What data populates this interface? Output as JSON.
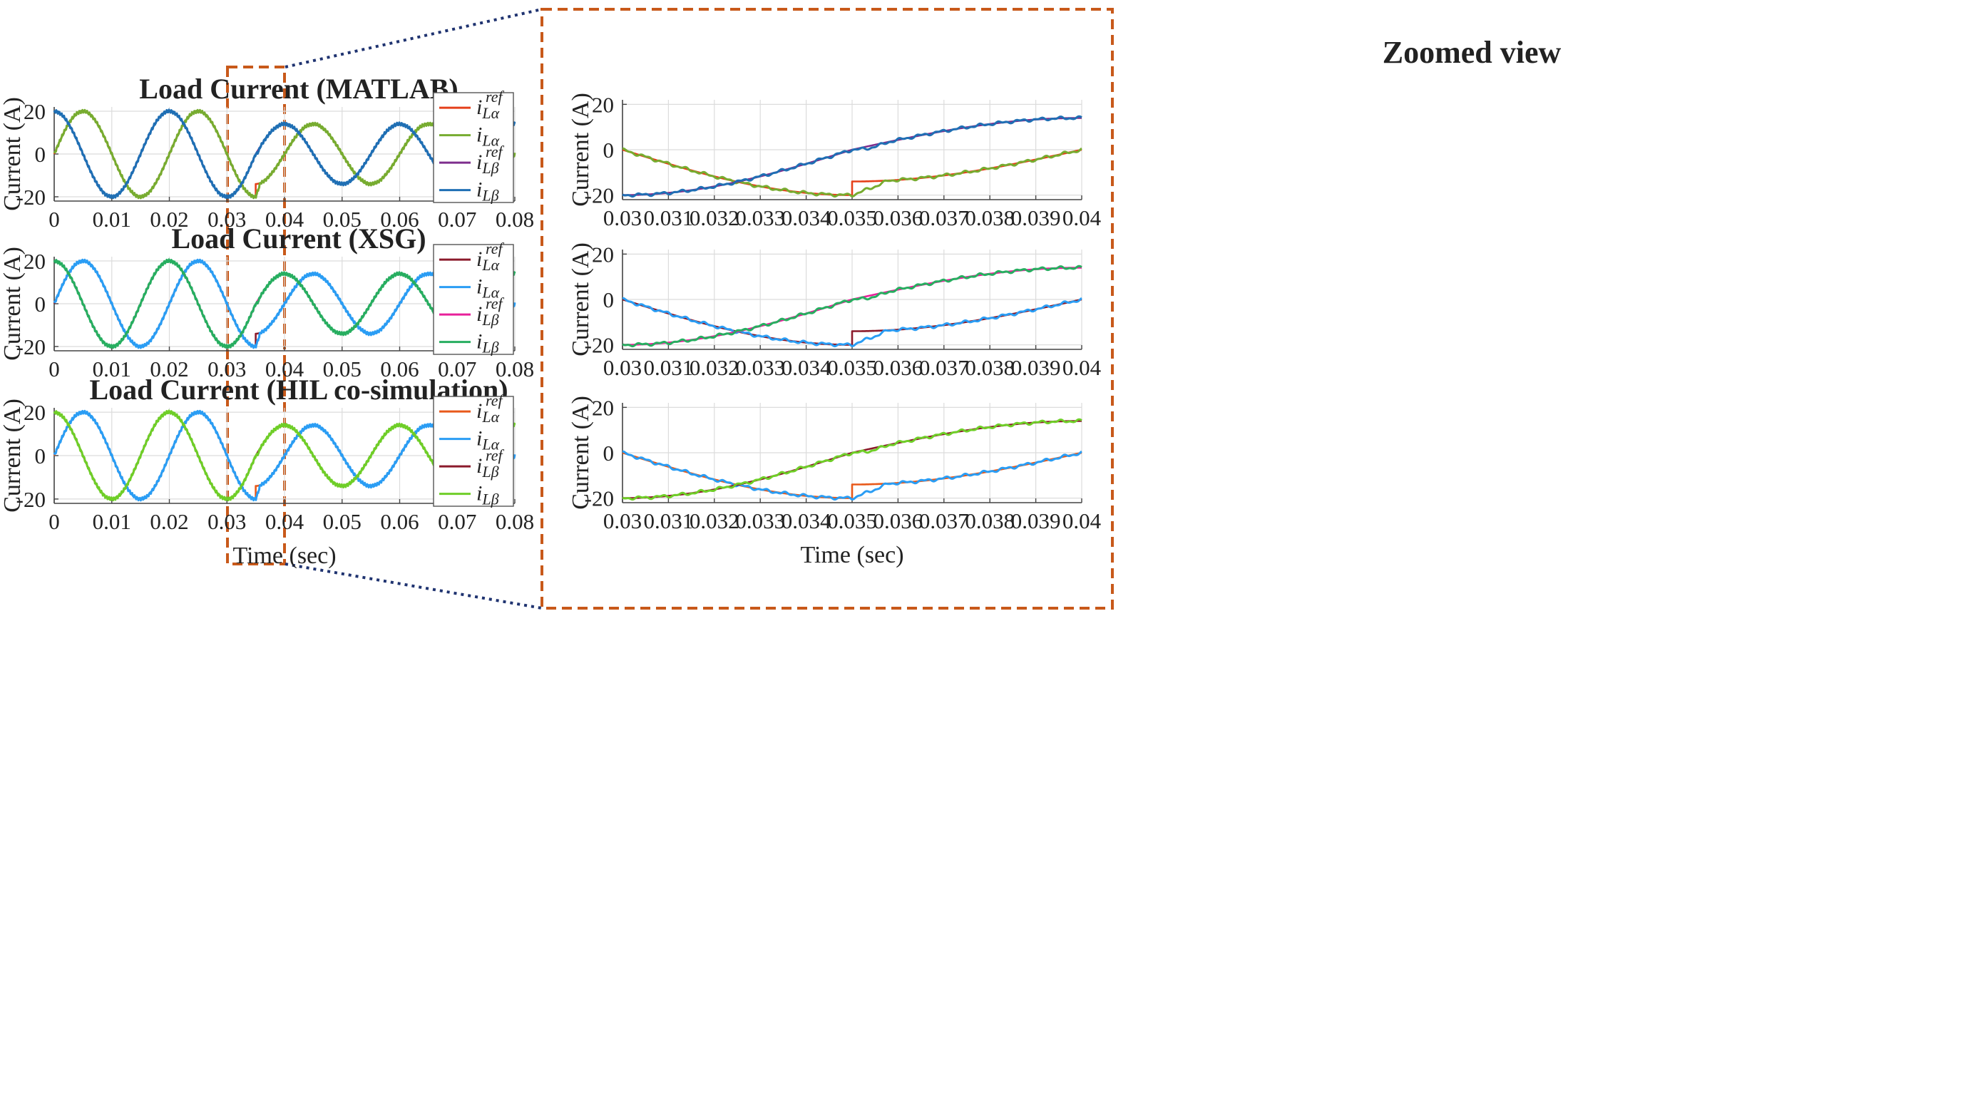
{
  "figure": {
    "zoom_title": "Zoomed view",
    "colors": {
      "box": "#c8591a",
      "connector": "#1f3370",
      "grid": "#dcdcdc",
      "axis": "#444444"
    }
  },
  "chart_data": [
    {
      "id": "left1",
      "type": "line",
      "title": "Load Current (MATLAB)",
      "xlabel": "",
      "ylabel": "Current (A)",
      "xlim": [
        0,
        0.08
      ],
      "ylim": [
        -22,
        22
      ],
      "xticks": [
        0,
        0.01,
        0.02,
        0.03,
        0.04,
        0.05,
        0.06,
        0.07,
        0.08
      ],
      "xtick_labels": [
        "0",
        "0.01",
        "0.02",
        "0.03",
        "0.04",
        "0.05",
        "0.06",
        "0.07",
        "0.08"
      ],
      "yticks": [
        20,
        0,
        -20
      ],
      "ytick_labels": [
        "20",
        "0",
        "-20"
      ],
      "legend_position": "top-right",
      "series": [
        {
          "name": "i_Lα^ref",
          "base": "i",
          "sub": "Lα",
          "sup": "ref",
          "signal": "alpha",
          "ref": true,
          "color": "#e5401b"
        },
        {
          "name": "i_Lα",
          "base": "i",
          "sub": "Lα",
          "sup": "",
          "signal": "alpha",
          "ref": false,
          "color": "#77ac30"
        },
        {
          "name": "i_Lβ^ref",
          "base": "i",
          "sub": "Lβ",
          "sup": "ref",
          "signal": "beta",
          "ref": true,
          "color": "#7e2f8e"
        },
        {
          "name": "i_Lβ",
          "base": "i",
          "sub": "Lβ",
          "sup": "",
          "signal": "beta",
          "ref": false,
          "color": "#1f6fb4"
        }
      ]
    },
    {
      "id": "left2",
      "type": "line",
      "title": "Load Current (XSG)",
      "xlabel": "",
      "ylabel": "Current (A)",
      "xlim": [
        0,
        0.08
      ],
      "ylim": [
        -22,
        22
      ],
      "xticks": [
        0,
        0.01,
        0.02,
        0.03,
        0.04,
        0.05,
        0.06,
        0.07,
        0.08
      ],
      "xtick_labels": [
        "0",
        "0.01",
        "0.02",
        "0.03",
        "0.04",
        "0.05",
        "0.06",
        "0.07",
        "0.08"
      ],
      "yticks": [
        20,
        0,
        -20
      ],
      "ytick_labels": [
        "20",
        "0",
        "-20"
      ],
      "legend_position": "top-right",
      "series": [
        {
          "name": "i_Lα^ref",
          "base": "i",
          "sub": "Lα",
          "sup": "ref",
          "signal": "alpha",
          "ref": true,
          "color": "#8b1a2b"
        },
        {
          "name": "i_Lα",
          "base": "i",
          "sub": "Lα",
          "sup": "",
          "signal": "alpha",
          "ref": false,
          "color": "#2a9df4"
        },
        {
          "name": "i_Lβ^ref",
          "base": "i",
          "sub": "Lβ",
          "sup": "ref",
          "signal": "beta",
          "ref": true,
          "color": "#e8209a"
        },
        {
          "name": "i_Lβ",
          "base": "i",
          "sub": "Lβ",
          "sup": "",
          "signal": "beta",
          "ref": false,
          "color": "#27ae60"
        }
      ]
    },
    {
      "id": "left3",
      "type": "line",
      "title": "Load Current (HIL co-simulation)",
      "xlabel": "Time (sec)",
      "ylabel": "Current (A)",
      "xlim": [
        0,
        0.08
      ],
      "ylim": [
        -22,
        22
      ],
      "xticks": [
        0,
        0.01,
        0.02,
        0.03,
        0.04,
        0.05,
        0.06,
        0.07,
        0.08
      ],
      "xtick_labels": [
        "0",
        "0.01",
        "0.02",
        "0.03",
        "0.04",
        "0.05",
        "0.06",
        "0.07",
        "0.08"
      ],
      "yticks": [
        20,
        0,
        -20
      ],
      "ytick_labels": [
        "20",
        "0",
        "-20"
      ],
      "legend_position": "top-right",
      "series": [
        {
          "name": "i_Lα^ref",
          "base": "i",
          "sub": "Lα",
          "sup": "ref",
          "signal": "alpha",
          "ref": true,
          "color": "#e8591a"
        },
        {
          "name": "i_Lα",
          "base": "i",
          "sub": "Lα",
          "sup": "",
          "signal": "alpha",
          "ref": false,
          "color": "#2a9df4"
        },
        {
          "name": "i_Lβ^ref",
          "base": "i",
          "sub": "Lβ",
          "sup": "ref",
          "signal": "beta",
          "ref": true,
          "color": "#8b1a2b"
        },
        {
          "name": "i_Lβ",
          "base": "i",
          "sub": "Lβ",
          "sup": "",
          "signal": "beta",
          "ref": false,
          "color": "#6fce28"
        }
      ]
    },
    {
      "id": "zoom1",
      "type": "line",
      "title": "",
      "xlabel": "",
      "ylabel": "Current (A)",
      "xlim": [
        0.03,
        0.04
      ],
      "ylim": [
        -22,
        22
      ],
      "xticks": [
        0.03,
        0.031,
        0.032,
        0.033,
        0.034,
        0.035,
        0.036,
        0.037,
        0.038,
        0.039,
        0.04
      ],
      "xtick_labels": [
        "0.03",
        "0.031",
        "0.032",
        "0.033",
        "0.034",
        "0.035",
        "0.036",
        "0.037",
        "0.038",
        "0.039",
        "0.04"
      ],
      "yticks": [
        20,
        0,
        -20
      ],
      "ytick_labels": [
        "20",
        "0",
        "-20"
      ],
      "series": [
        {
          "name": "i_Lα^ref",
          "signal": "alpha",
          "ref": true,
          "color": "#e5401b"
        },
        {
          "name": "i_Lα",
          "signal": "alpha",
          "ref": false,
          "color": "#77ac30"
        },
        {
          "name": "i_Lβ^ref",
          "signal": "beta",
          "ref": true,
          "color": "#7e2f8e"
        },
        {
          "name": "i_Lβ",
          "signal": "beta",
          "ref": false,
          "color": "#1f6fb4"
        }
      ]
    },
    {
      "id": "zoom2",
      "type": "line",
      "title": "",
      "xlabel": "",
      "ylabel": "Current (A)",
      "xlim": [
        0.03,
        0.04
      ],
      "ylim": [
        -22,
        22
      ],
      "xticks": [
        0.03,
        0.031,
        0.032,
        0.033,
        0.034,
        0.035,
        0.036,
        0.037,
        0.038,
        0.039,
        0.04
      ],
      "xtick_labels": [
        "0.03",
        "0.031",
        "0.032",
        "0.033",
        "0.034",
        "0.035",
        "0.036",
        "0.037",
        "0.038",
        "0.039",
        "0.04"
      ],
      "yticks": [
        20,
        0,
        -20
      ],
      "ytick_labels": [
        "20",
        "0",
        "-20"
      ],
      "series": [
        {
          "name": "i_Lα^ref",
          "signal": "alpha",
          "ref": true,
          "color": "#8b1a2b"
        },
        {
          "name": "i_Lα",
          "signal": "alpha",
          "ref": false,
          "color": "#2a9df4"
        },
        {
          "name": "i_Lβ^ref",
          "signal": "beta",
          "ref": true,
          "color": "#e8209a"
        },
        {
          "name": "i_Lβ",
          "signal": "beta",
          "ref": false,
          "color": "#27ae60"
        }
      ]
    },
    {
      "id": "zoom3",
      "type": "line",
      "title": "",
      "xlabel": "Time (sec)",
      "ylabel": "Current (A)",
      "xlim": [
        0.03,
        0.04
      ],
      "ylim": [
        -22,
        22
      ],
      "xticks": [
        0.03,
        0.031,
        0.032,
        0.033,
        0.034,
        0.035,
        0.036,
        0.037,
        0.038,
        0.039,
        0.04
      ],
      "xtick_labels": [
        "0.03",
        "0.031",
        "0.032",
        "0.033",
        "0.034",
        "0.035",
        "0.036",
        "0.037",
        "0.038",
        "0.039",
        "0.04"
      ],
      "yticks": [
        20,
        0,
        -20
      ],
      "ytick_labels": [
        "20",
        "0",
        "-20"
      ],
      "series": [
        {
          "name": "i_Lα^ref",
          "signal": "alpha",
          "ref": true,
          "color": "#e8591a"
        },
        {
          "name": "i_Lα",
          "signal": "alpha",
          "ref": false,
          "color": "#2a9df4"
        },
        {
          "name": "i_Lβ^ref",
          "signal": "beta",
          "ref": true,
          "color": "#8b1a2b"
        },
        {
          "name": "i_Lβ",
          "signal": "beta",
          "ref": false,
          "color": "#6fce28"
        }
      ]
    }
  ],
  "signal_model": {
    "frequency_hz": 50,
    "amplitude_before": 20,
    "amplitude_after": 14,
    "step_time": 0.035,
    "alpha": "A*sin(2*pi*f*t)",
    "beta": "A*cos(2*pi*f*t)",
    "actual_lag_s": 0.0008
  }
}
